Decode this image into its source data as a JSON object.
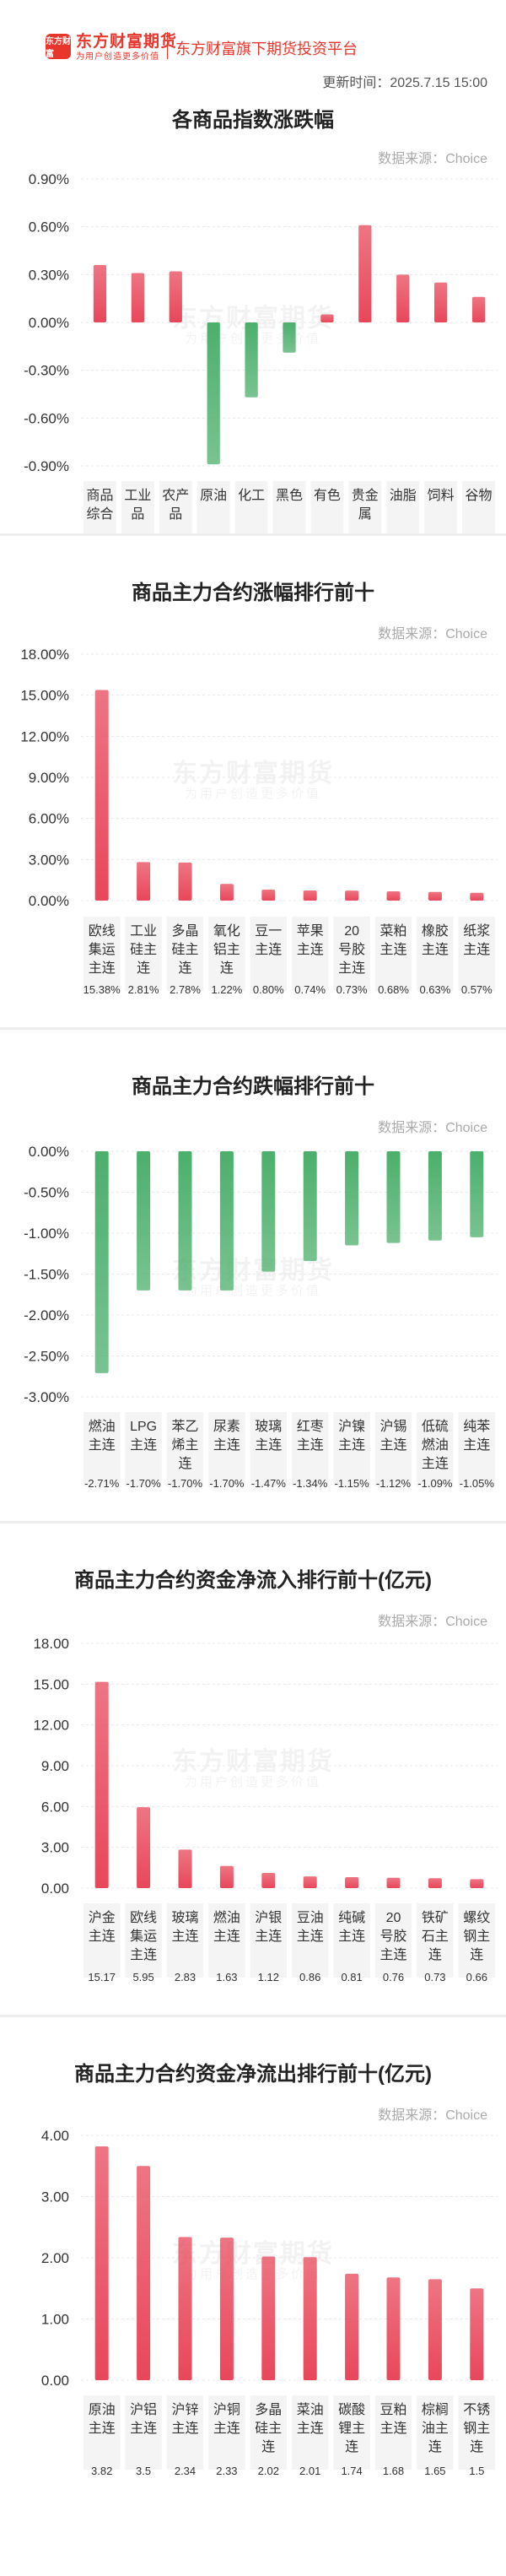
{
  "header": {
    "logo_text": "东方财富",
    "brand_name": "东方财富期货",
    "brand_slogan": "为用户创造更多价值",
    "platform": "东方财富旗下期货投资平台",
    "update_time": "更新时间：2025.7.15 15:00"
  },
  "watermark": {
    "main": "东方财富期货",
    "sub": "为用户创造更多价值"
  },
  "colors": {
    "up": "#e8475a",
    "down": "#4caf6c",
    "cell_bg": "#f4f4f4",
    "grid": "#e8e8e8"
  },
  "chart_data": [
    {
      "type": "bar",
      "title": "各商品指数涨跌幅",
      "source": "数据来源：Choice",
      "categories": [
        "商品综合",
        "工业品",
        "农产品",
        "原油",
        "化工",
        "黑色",
        "有色",
        "贵金属",
        "油脂",
        "饲料",
        "谷物"
      ],
      "values": [
        0.36,
        0.31,
        0.32,
        -0.89,
        -0.47,
        -0.19,
        0.05,
        0.61,
        0.3,
        0.25,
        0.16
      ],
      "value_labels": [
        "0.36%",
        "0.31%",
        "0.32%",
        "-0.89%",
        "-0.47%",
        "-0.19%",
        "0.05%",
        "0.61%",
        "0.30%",
        "0.25%",
        "0.16%"
      ],
      "ylim": [
        -0.9,
        0.9
      ],
      "yticks": [
        0.9,
        0.6,
        0.3,
        0.0,
        -0.3,
        -0.6,
        -0.9
      ],
      "ytick_labels": [
        "0.90%",
        "0.60%",
        "0.30%",
        "0.00%",
        "-0.30%",
        "-0.60%",
        "-0.90%"
      ]
    },
    {
      "type": "bar",
      "title": "商品主力合约涨幅排行前十",
      "source": "数据来源：Choice",
      "categories": [
        "欧线集运主连",
        "工业硅主连",
        "多晶硅主连",
        "氧化铝主连",
        "豆一主连",
        "苹果主连",
        "20号胶主连",
        "菜粕主连",
        "橡胶主连",
        "纸浆主连"
      ],
      "values": [
        15.38,
        2.81,
        2.78,
        1.22,
        0.8,
        0.74,
        0.73,
        0.68,
        0.63,
        0.57
      ],
      "value_labels": [
        "15.38%",
        "2.81%",
        "2.78%",
        "1.22%",
        "0.80%",
        "0.74%",
        "0.73%",
        "0.68%",
        "0.63%",
        "0.57%"
      ],
      "ylim": [
        0,
        18
      ],
      "yticks": [
        18,
        15,
        12,
        9,
        6,
        3,
        0
      ],
      "ytick_labels": [
        "18.00%",
        "15.00%",
        "12.00%",
        "9.00%",
        "6.00%",
        "3.00%",
        "0.00%"
      ]
    },
    {
      "type": "bar",
      "title": "商品主力合约跌幅排行前十",
      "source": "数据来源：Choice",
      "categories": [
        "燃油主连",
        "LPG主连",
        "苯乙烯主连",
        "尿素主连",
        "玻璃主连",
        "红枣主连",
        "沪镍主连",
        "沪锡主连",
        "低硫燃油主连",
        "纯苯主连"
      ],
      "values": [
        -2.71,
        -1.7,
        -1.7,
        -1.7,
        -1.47,
        -1.34,
        -1.15,
        -1.12,
        -1.09,
        -1.05
      ],
      "value_labels": [
        "-2.71%",
        "-1.70%",
        "-1.70%",
        "-1.70%",
        "-1.47%",
        "-1.34%",
        "-1.15%",
        "-1.12%",
        "-1.09%",
        "-1.05%"
      ],
      "ylim": [
        -3,
        0
      ],
      "yticks": [
        0,
        -0.5,
        -1.0,
        -1.5,
        -2.0,
        -2.5,
        -3.0
      ],
      "ytick_labels": [
        "0.00%",
        "-0.50%",
        "-1.00%",
        "-1.50%",
        "-2.00%",
        "-2.50%",
        "-3.00%"
      ]
    },
    {
      "type": "bar",
      "title": "商品主力合约资金净流入排行前十(亿元)",
      "source": "数据来源：Choice",
      "categories": [
        "沪金主连",
        "欧线集运主连",
        "玻璃主连",
        "燃油主连",
        "沪银主连",
        "豆油主连",
        "纯碱主连",
        "20号胶主连",
        "铁矿石主连",
        "螺纹钢主连"
      ],
      "values": [
        15.17,
        5.95,
        2.83,
        1.63,
        1.12,
        0.86,
        0.81,
        0.76,
        0.73,
        0.66
      ],
      "value_labels": [
        "15.17",
        "5.95",
        "2.83",
        "1.63",
        "1.12",
        "0.86",
        "0.81",
        "0.76",
        "0.73",
        "0.66"
      ],
      "ylim": [
        0,
        18
      ],
      "yticks": [
        18,
        15,
        12,
        9,
        6,
        3,
        0
      ],
      "ytick_labels": [
        "18.00",
        "15.00",
        "12.00",
        "9.00",
        "6.00",
        "3.00",
        "0.00"
      ]
    },
    {
      "type": "bar",
      "title": "商品主力合约资金净流出排行前十(亿元)",
      "source": "数据来源：Choice",
      "categories": [
        "原油主连",
        "沪铝主连",
        "沪锌主连",
        "沪铜主连",
        "多晶硅主连",
        "菜油主连",
        "碳酸锂主连",
        "豆粕主连",
        "棕榈油主连",
        "不锈钢主连"
      ],
      "values": [
        3.82,
        3.5,
        2.34,
        2.33,
        2.02,
        2.01,
        1.74,
        1.68,
        1.65,
        1.5
      ],
      "value_labels": [
        "3.82",
        "3.5",
        "2.34",
        "2.33",
        "2.02",
        "2.01",
        "1.74",
        "1.68",
        "1.65",
        "1.5"
      ],
      "ylim": [
        0,
        4
      ],
      "yticks": [
        4,
        3,
        2,
        1,
        0
      ],
      "ytick_labels": [
        "4.00",
        "3.00",
        "2.00",
        "1.00",
        "0.00"
      ]
    }
  ]
}
